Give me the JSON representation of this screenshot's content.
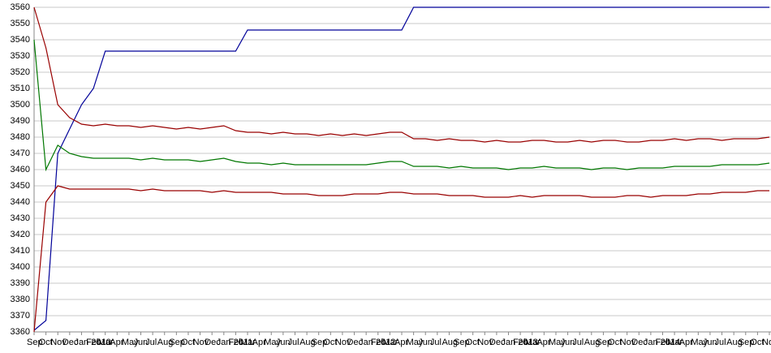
{
  "chart_data": {
    "type": "line",
    "categories": [
      "Sep",
      "Oct",
      "Nov",
      "Dec",
      "Jan 2010",
      "Feb",
      "Mar",
      "Apr",
      "May",
      "Jun",
      "Jul",
      "Aug",
      "Sep",
      "Oct",
      "Nov",
      "Dec",
      "Jan 2011",
      "Feb",
      "Mar",
      "Apr",
      "May",
      "Jun",
      "Jul",
      "Aug",
      "Sep",
      "Oct",
      "Nov",
      "Dec",
      "Jan 2012",
      "Feb",
      "Mar",
      "Apr",
      "May",
      "Jun",
      "Jul",
      "Aug",
      "Sep",
      "Oct",
      "Nov",
      "Dec",
      "Jan 2013",
      "Feb",
      "Mar",
      "Apr",
      "May",
      "Jun",
      "Jul",
      "Aug",
      "Sep",
      "Oct",
      "Nov",
      "Dec",
      "Jan 2014",
      "Feb",
      "Mar",
      "Apr",
      "May",
      "Jun",
      "Jul",
      "Aug",
      "Sep",
      "Oct",
      "Nov"
    ],
    "series": [
      {
        "color": "#000099",
        "values": [
          3361,
          3367,
          3470,
          3485,
          3500,
          3510,
          3533,
          3533,
          3533,
          3533,
          3533,
          3533,
          3533,
          3533,
          3533,
          3533,
          3533,
          3533,
          3546,
          3546,
          3546,
          3546,
          3546,
          3546,
          3546,
          3546,
          3546,
          3546,
          3546,
          3546,
          3546,
          3546,
          3560,
          3560,
          3560,
          3560,
          3560,
          3560,
          3560,
          3560,
          3560,
          3560,
          3560,
          3560,
          3560,
          3560,
          3560,
          3560,
          3560,
          3560,
          3560,
          3560,
          3560,
          3560,
          3560,
          3560,
          3560,
          3560,
          3560,
          3560,
          3560,
          3560,
          3560
        ]
      },
      {
        "color": "#990000",
        "values": [
          3560,
          3535,
          3500,
          3492,
          3488,
          3487,
          3488,
          3487,
          3487,
          3486,
          3487,
          3486,
          3485,
          3486,
          3485,
          3486,
          3487,
          3484,
          3483,
          3483,
          3482,
          3483,
          3482,
          3482,
          3481,
          3482,
          3481,
          3482,
          3481,
          3482,
          3483,
          3483,
          3479,
          3479,
          3478,
          3479,
          3478,
          3478,
          3477,
          3478,
          3477,
          3477,
          3478,
          3478,
          3477,
          3477,
          3478,
          3477,
          3478,
          3478,
          3477,
          3477,
          3478,
          3478,
          3479,
          3478,
          3479,
          3479,
          3478,
          3479,
          3479,
          3479,
          3480
        ]
      },
      {
        "color": "#007700",
        "values": [
          3540,
          3460,
          3475,
          3470,
          3468,
          3467,
          3467,
          3467,
          3467,
          3466,
          3467,
          3466,
          3466,
          3466,
          3465,
          3466,
          3467,
          3465,
          3464,
          3464,
          3463,
          3464,
          3463,
          3463,
          3463,
          3463,
          3463,
          3463,
          3463,
          3464,
          3465,
          3465,
          3462,
          3462,
          3462,
          3461,
          3462,
          3461,
          3461,
          3461,
          3460,
          3461,
          3461,
          3462,
          3461,
          3461,
          3461,
          3460,
          3461,
          3461,
          3460,
          3461,
          3461,
          3461,
          3462,
          3462,
          3462,
          3462,
          3463,
          3463,
          3463,
          3463,
          3464
        ]
      },
      {
        "color": "#990000",
        "values": [
          3360,
          3440,
          3450,
          3448,
          3448,
          3448,
          3448,
          3448,
          3448,
          3447,
          3448,
          3447,
          3447,
          3447,
          3447,
          3446,
          3447,
          3446,
          3446,
          3446,
          3446,
          3445,
          3445,
          3445,
          3444,
          3444,
          3444,
          3445,
          3445,
          3445,
          3446,
          3446,
          3445,
          3445,
          3445,
          3444,
          3444,
          3444,
          3443,
          3443,
          3443,
          3444,
          3443,
          3444,
          3444,
          3444,
          3444,
          3443,
          3443,
          3443,
          3444,
          3444,
          3443,
          3444,
          3444,
          3444,
          3445,
          3445,
          3446,
          3446,
          3446,
          3447,
          3447
        ]
      }
    ],
    "ylim": [
      3360,
      3560
    ],
    "yticks": [
      3360,
      3370,
      3380,
      3390,
      3400,
      3410,
      3420,
      3430,
      3440,
      3450,
      3460,
      3470,
      3480,
      3490,
      3500,
      3510,
      3520,
      3530,
      3540,
      3550,
      3560
    ],
    "grid": true
  }
}
